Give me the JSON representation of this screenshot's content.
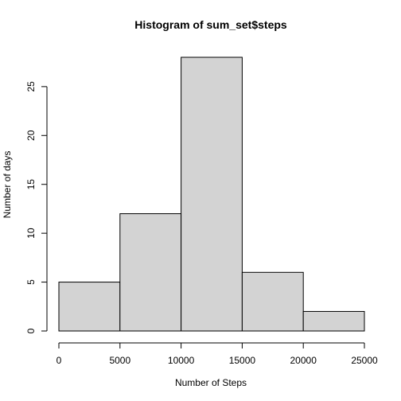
{
  "chart_data": {
    "type": "bar",
    "title": "Histogram of sum_set$steps",
    "xlabel": "Number of Steps",
    "ylabel": "Number of days",
    "bins": [
      {
        "from": 0,
        "to": 5000,
        "count": 5
      },
      {
        "from": 5000,
        "to": 10000,
        "count": 12
      },
      {
        "from": 10000,
        "to": 15000,
        "count": 28
      },
      {
        "from": 15000,
        "to": 20000,
        "count": 6
      },
      {
        "from": 20000,
        "to": 25000,
        "count": 2
      }
    ],
    "xlim": [
      0,
      25000
    ],
    "ylim": [
      0,
      28
    ],
    "x_ticks": [
      0,
      5000,
      10000,
      15000,
      20000,
      25000
    ],
    "y_ticks": [
      0,
      5,
      10,
      15,
      20,
      25
    ],
    "bar_fill": "#d3d3d3",
    "bar_stroke": "#000000",
    "grid": false
  }
}
